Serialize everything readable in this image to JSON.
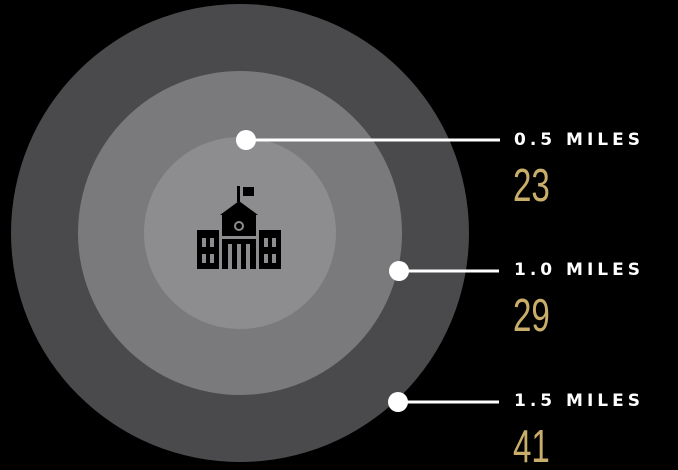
{
  "colors": {
    "background": "#000000",
    "ring_outer": "#4a4a4c",
    "ring_middle": "#7a7a7c",
    "ring_inner": "#8d8d90",
    "connector": "#ffffff",
    "label_text": "#ffffff",
    "value_text": "#c9ad6a",
    "icon": "#000000"
  },
  "center_icon": "school-building-icon",
  "rings": [
    {
      "distance_label": "0.5 MILES",
      "value": "23"
    },
    {
      "distance_label": "1.0 MILES",
      "value": "29"
    },
    {
      "distance_label": "1.5 MILES",
      "value": "41"
    }
  ]
}
